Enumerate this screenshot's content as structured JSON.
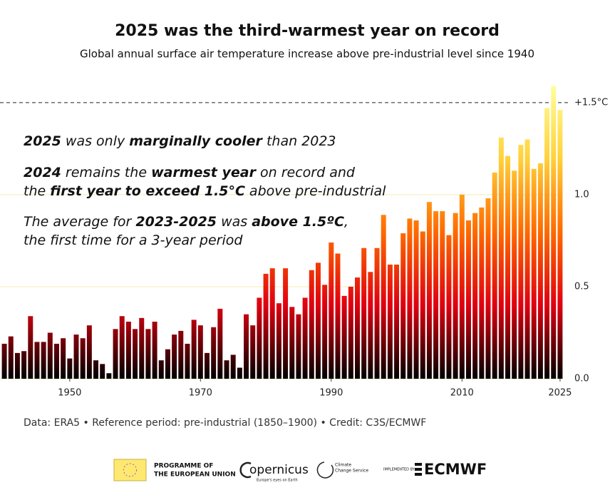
{
  "chart_data": {
    "type": "bar",
    "title": "2025 was the third-warmest year on record",
    "subtitle": "Global annual surface air temperature increase above pre-industrial level since 1940",
    "x": [
      1940,
      1941,
      1942,
      1943,
      1944,
      1945,
      1946,
      1947,
      1948,
      1949,
      1950,
      1951,
      1952,
      1953,
      1954,
      1955,
      1956,
      1957,
      1958,
      1959,
      1960,
      1961,
      1962,
      1963,
      1964,
      1965,
      1966,
      1967,
      1968,
      1969,
      1970,
      1971,
      1972,
      1973,
      1974,
      1975,
      1976,
      1977,
      1978,
      1979,
      1980,
      1981,
      1982,
      1983,
      1984,
      1985,
      1986,
      1987,
      1988,
      1989,
      1990,
      1991,
      1992,
      1993,
      1994,
      1995,
      1996,
      1997,
      1998,
      1999,
      2000,
      2001,
      2002,
      2003,
      2004,
      2005,
      2006,
      2007,
      2008,
      2009,
      2010,
      2011,
      2012,
      2013,
      2014,
      2015,
      2016,
      2017,
      2018,
      2019,
      2020,
      2021,
      2022,
      2023,
      2024,
      2025
    ],
    "values": [
      0.19,
      0.23,
      0.14,
      0.15,
      0.34,
      0.2,
      0.2,
      0.25,
      0.19,
      0.22,
      0.11,
      0.24,
      0.22,
      0.29,
      0.1,
      0.08,
      0.03,
      0.27,
      0.34,
      0.31,
      0.27,
      0.33,
      0.27,
      0.31,
      0.1,
      0.16,
      0.24,
      0.26,
      0.19,
      0.32,
      0.29,
      0.14,
      0.28,
      0.38,
      0.1,
      0.13,
      0.06,
      0.35,
      0.29,
      0.44,
      0.57,
      0.6,
      0.41,
      0.6,
      0.39,
      0.35,
      0.44,
      0.59,
      0.63,
      0.51,
      0.74,
      0.68,
      0.45,
      0.5,
      0.55,
      0.71,
      0.58,
      0.71,
      0.89,
      0.62,
      0.62,
      0.79,
      0.87,
      0.86,
      0.8,
      0.96,
      0.91,
      0.91,
      0.78,
      0.9,
      1.0,
      0.86,
      0.9,
      0.93,
      0.98,
      1.12,
      1.31,
      1.21,
      1.13,
      1.27,
      1.3,
      1.14,
      1.17,
      1.47,
      1.59,
      1.46
    ],
    "colors": [
      "#000000",
      "#e00010",
      "#ff6a00",
      "#ffd23a",
      "#ffffa0"
    ],
    "xlim": [
      1939.5,
      2025.5
    ],
    "xticks": [
      1950,
      1970,
      1990,
      2010,
      2025
    ],
    "ylim": [
      0,
      1.6
    ],
    "yticks": [
      {
        "value": 0,
        "label": "0.0"
      },
      0.5,
      {
        "value": 1,
        "label": "1.0"
      },
      {
        "value": 1.5,
        "label": "+1.5°C",
        "style": "dashed"
      }
    ],
    "grid": true,
    "annotations": [
      [
        [
          {
            "text": "2025",
            "bold": true
          },
          {
            "text": " was only "
          },
          {
            "text": "marginally cooler",
            "bold": true
          },
          {
            "text": " than 2023"
          }
        ]
      ],
      [
        [
          {
            "text": "2024",
            "bold": true
          },
          {
            "text": " remains the "
          },
          {
            "text": "warmest year",
            "bold": true
          },
          {
            "text": " on record and"
          }
        ],
        [
          {
            "text": "the "
          },
          {
            "text": "first year to exceed 1.5°C",
            "bold": true
          },
          {
            "text": " above pre-industrial"
          }
        ]
      ],
      [
        [
          {
            "text": "The average for "
          },
          {
            "text": "2023-2025",
            "bold": true
          },
          {
            "text": " was "
          },
          {
            "text": "above 1.5ºC",
            "bold": true
          },
          {
            "text": ","
          }
        ],
        [
          {
            "text": "the first time for a 3-year period"
          }
        ]
      ]
    ]
  },
  "footer": "Data: ERA5 • Reference period: pre-industrial (1850–1900) • Credit: C3S/ECMWF",
  "logos": {
    "eu": [
      "PROGRAMME OF",
      "THE EUROPEAN UNION"
    ],
    "copernicus": "opernicus",
    "copernicus_sub": "Europe's eyes on Earth",
    "c3s": [
      "Climate",
      "Change Service"
    ],
    "implemented": "IMPLEMENTED BY",
    "ecmwf": "ECMWF"
  }
}
